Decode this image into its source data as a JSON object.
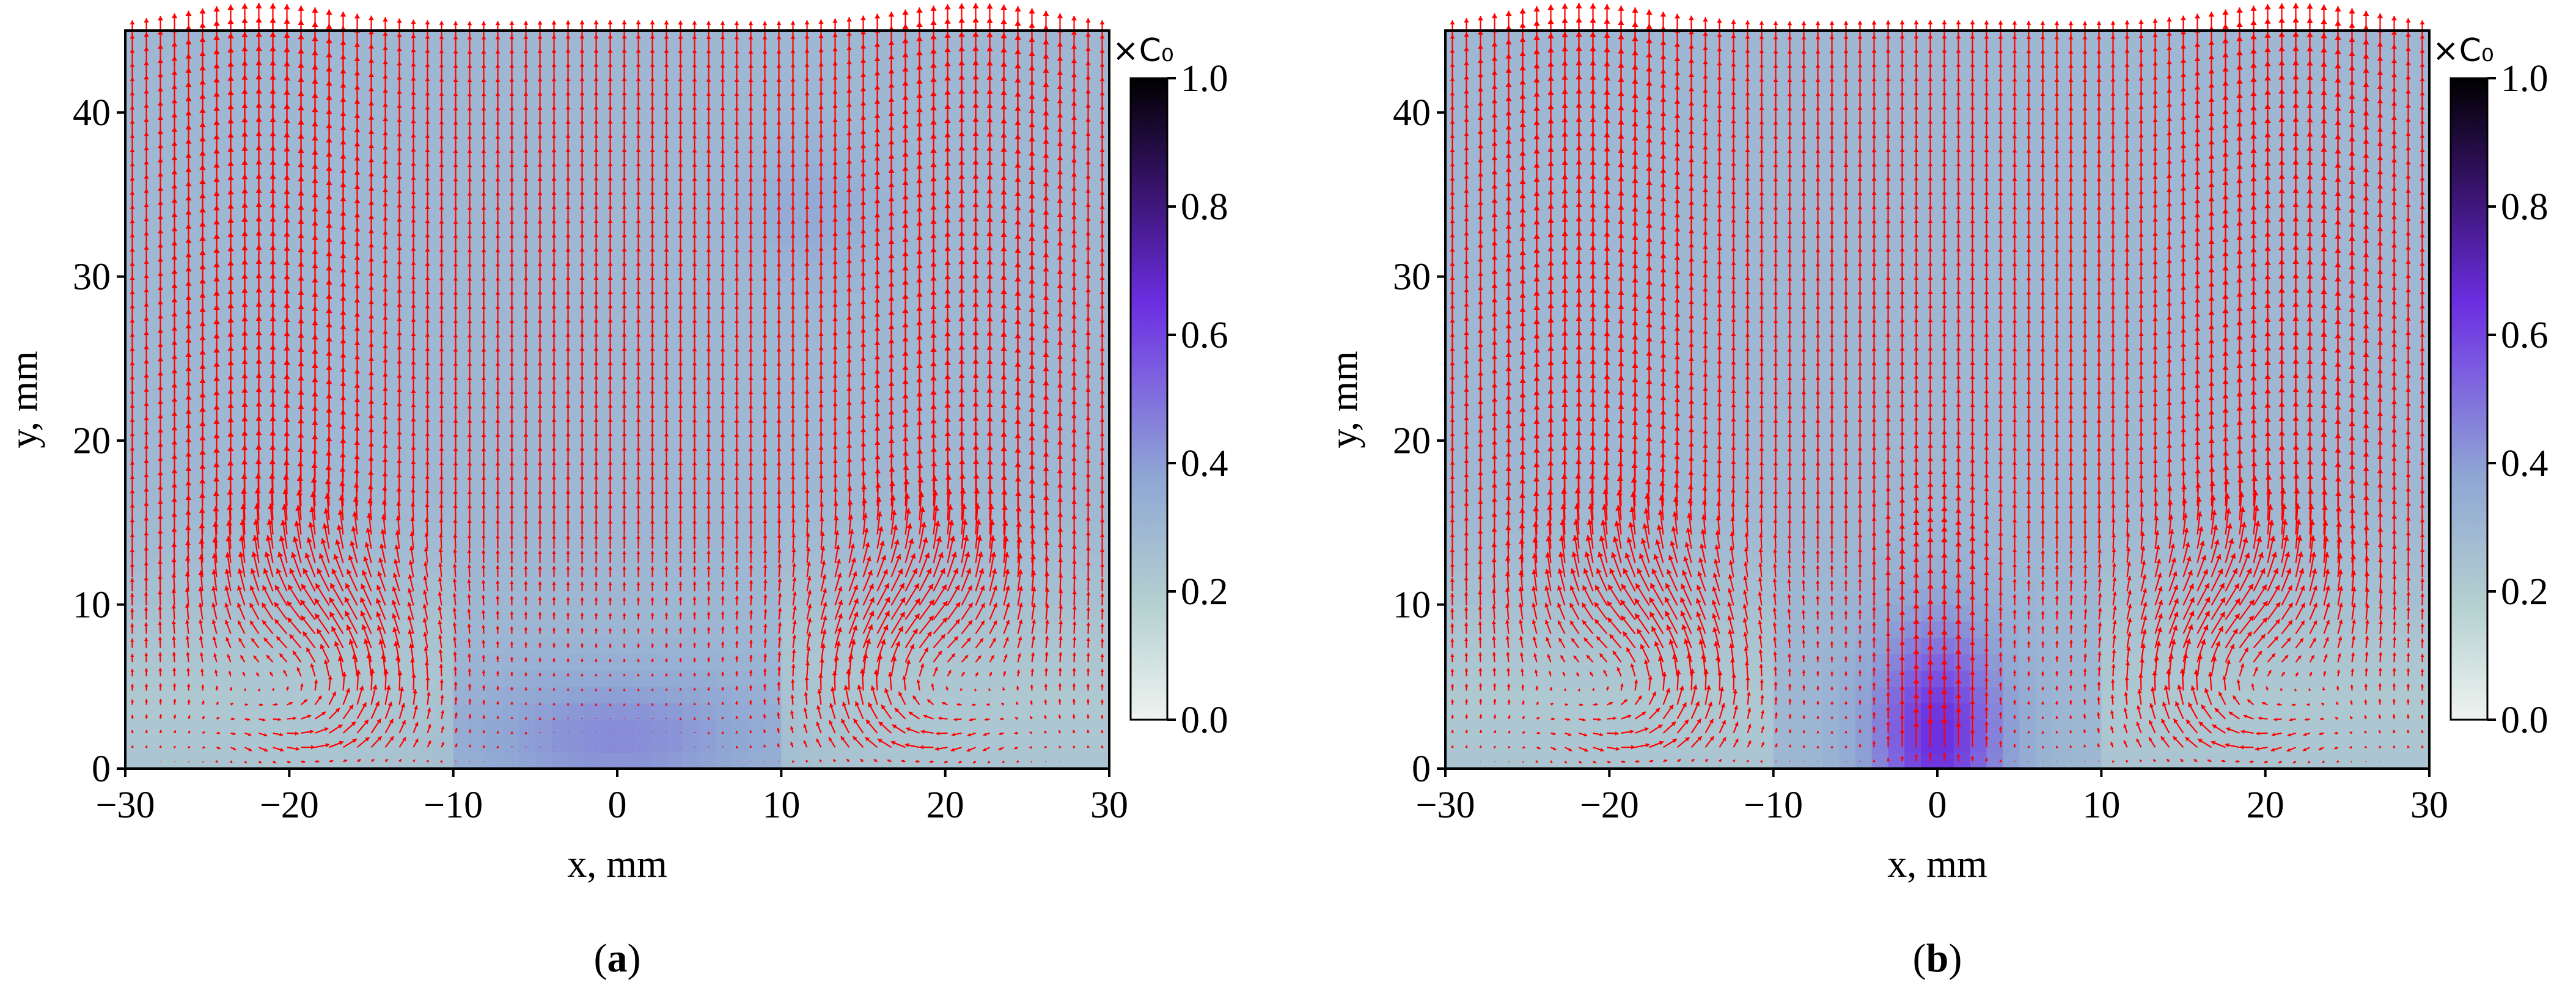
{
  "chart_data": [
    {
      "type": "heatmap",
      "panel_label": "a",
      "xlabel": "x, mm",
      "ylabel": "y, mm",
      "xlim": [
        -30,
        30
      ],
      "ylim": [
        0,
        45
      ],
      "x_ticks": [
        "−30",
        "−20",
        "−10",
        "0",
        "10",
        "20",
        "30"
      ],
      "y_ticks": [
        "0",
        "10",
        "20",
        "30",
        "40"
      ],
      "colorbar": {
        "unit": "×C₀",
        "range": [
          0.0,
          1.0
        ],
        "ticks": [
          "0.0",
          "0.2",
          "0.4",
          "0.6",
          "0.8",
          "1.0"
        ],
        "colormap": [
          "#eef3f0",
          "#b4d0d0",
          "#8fa6d4",
          "#7b5ae0",
          "#6b2ee0",
          "#3a1470",
          "#000000"
        ]
      },
      "field_description": "concentration field, quiver overlay of velocity vectors",
      "background_concentration": 0.3,
      "blobs": [
        {
          "x": 0,
          "y": 2,
          "sx": 9,
          "sy": 4,
          "c": 0.14
        },
        {
          "x": 12,
          "y": 34,
          "sx": 4,
          "sy": 4,
          "c": 0.06
        }
      ],
      "vortices": [
        {
          "x": -18,
          "y": 5,
          "side": "left"
        },
        {
          "x": 18,
          "y": 5,
          "side": "right"
        }
      ],
      "arrow_color": "#ff0000"
    },
    {
      "type": "heatmap",
      "panel_label": "b",
      "xlabel": "x, mm",
      "ylabel": "y, mm",
      "xlim": [
        -30,
        30
      ],
      "ylim": [
        0,
        45
      ],
      "x_ticks": [
        "−30",
        "−20",
        "−10",
        "0",
        "10",
        "20",
        "30"
      ],
      "y_ticks": [
        "0",
        "10",
        "20",
        "30",
        "40"
      ],
      "colorbar": {
        "unit": "×C₀",
        "range": [
          0.0,
          1.0
        ],
        "ticks": [
          "0.0",
          "0.2",
          "0.4",
          "0.6",
          "0.8",
          "1.0"
        ],
        "colormap": [
          "#eef3f0",
          "#b4d0d0",
          "#8fa6d4",
          "#7b5ae0",
          "#6b2ee0",
          "#3a1470",
          "#000000"
        ]
      },
      "field_description": "concentration field, quiver overlay of velocity vectors",
      "background_concentration": 0.3,
      "blobs": [
        {
          "x": 0,
          "y": 2,
          "sx": 4,
          "sy": 7,
          "c": 0.35
        }
      ],
      "vortices": [
        {
          "x": -18,
          "y": 5,
          "side": "left"
        },
        {
          "x": 18,
          "y": 5,
          "side": "right"
        }
      ],
      "jet": {
        "x": 0,
        "y_top": 12,
        "width": 3
      },
      "arrow_color": "#ff0000"
    }
  ]
}
